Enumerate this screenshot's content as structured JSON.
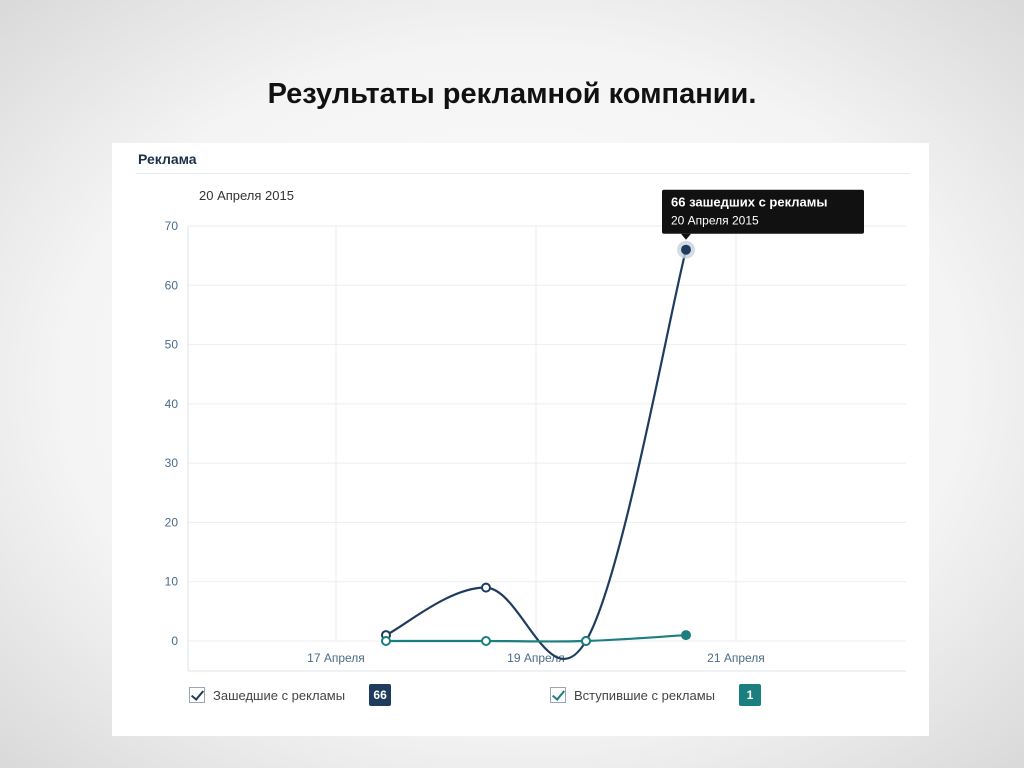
{
  "slide": {
    "title": "Результаты рекламной компании."
  },
  "panel": {
    "title": "Реклама",
    "date_label": "20 Апреля 2015"
  },
  "chart_data": {
    "type": "line",
    "y_ticks": [
      0,
      10,
      20,
      30,
      40,
      50,
      60,
      70
    ],
    "x_tick_labels": [
      "17 Апреля",
      "19 Апреля",
      "21 Апреля"
    ],
    "ylim": [
      0,
      70
    ],
    "grid": true,
    "x": [
      0,
      1,
      2,
      3
    ],
    "series": [
      {
        "name": "Зашедшие с рекламы",
        "values": [
          1,
          9,
          0,
          66
        ],
        "color": "#1f3c5e"
      },
      {
        "name": "Вступившие с рекламы",
        "values": [
          0,
          0,
          0,
          1
        ],
        "color": "#1b7f80"
      }
    ],
    "tooltip": {
      "title": "66 зашедших с рекламы",
      "subtitle": "20 Апреля 2015"
    },
    "legend_placement": "bottom"
  },
  "legend": {
    "items": [
      {
        "label": "Зашедшие с рекламы",
        "badge": "66",
        "color": "#1f3c5e"
      },
      {
        "label": "Вступившие с рекламы",
        "badge": "1",
        "color": "#1b7f80"
      }
    ]
  }
}
